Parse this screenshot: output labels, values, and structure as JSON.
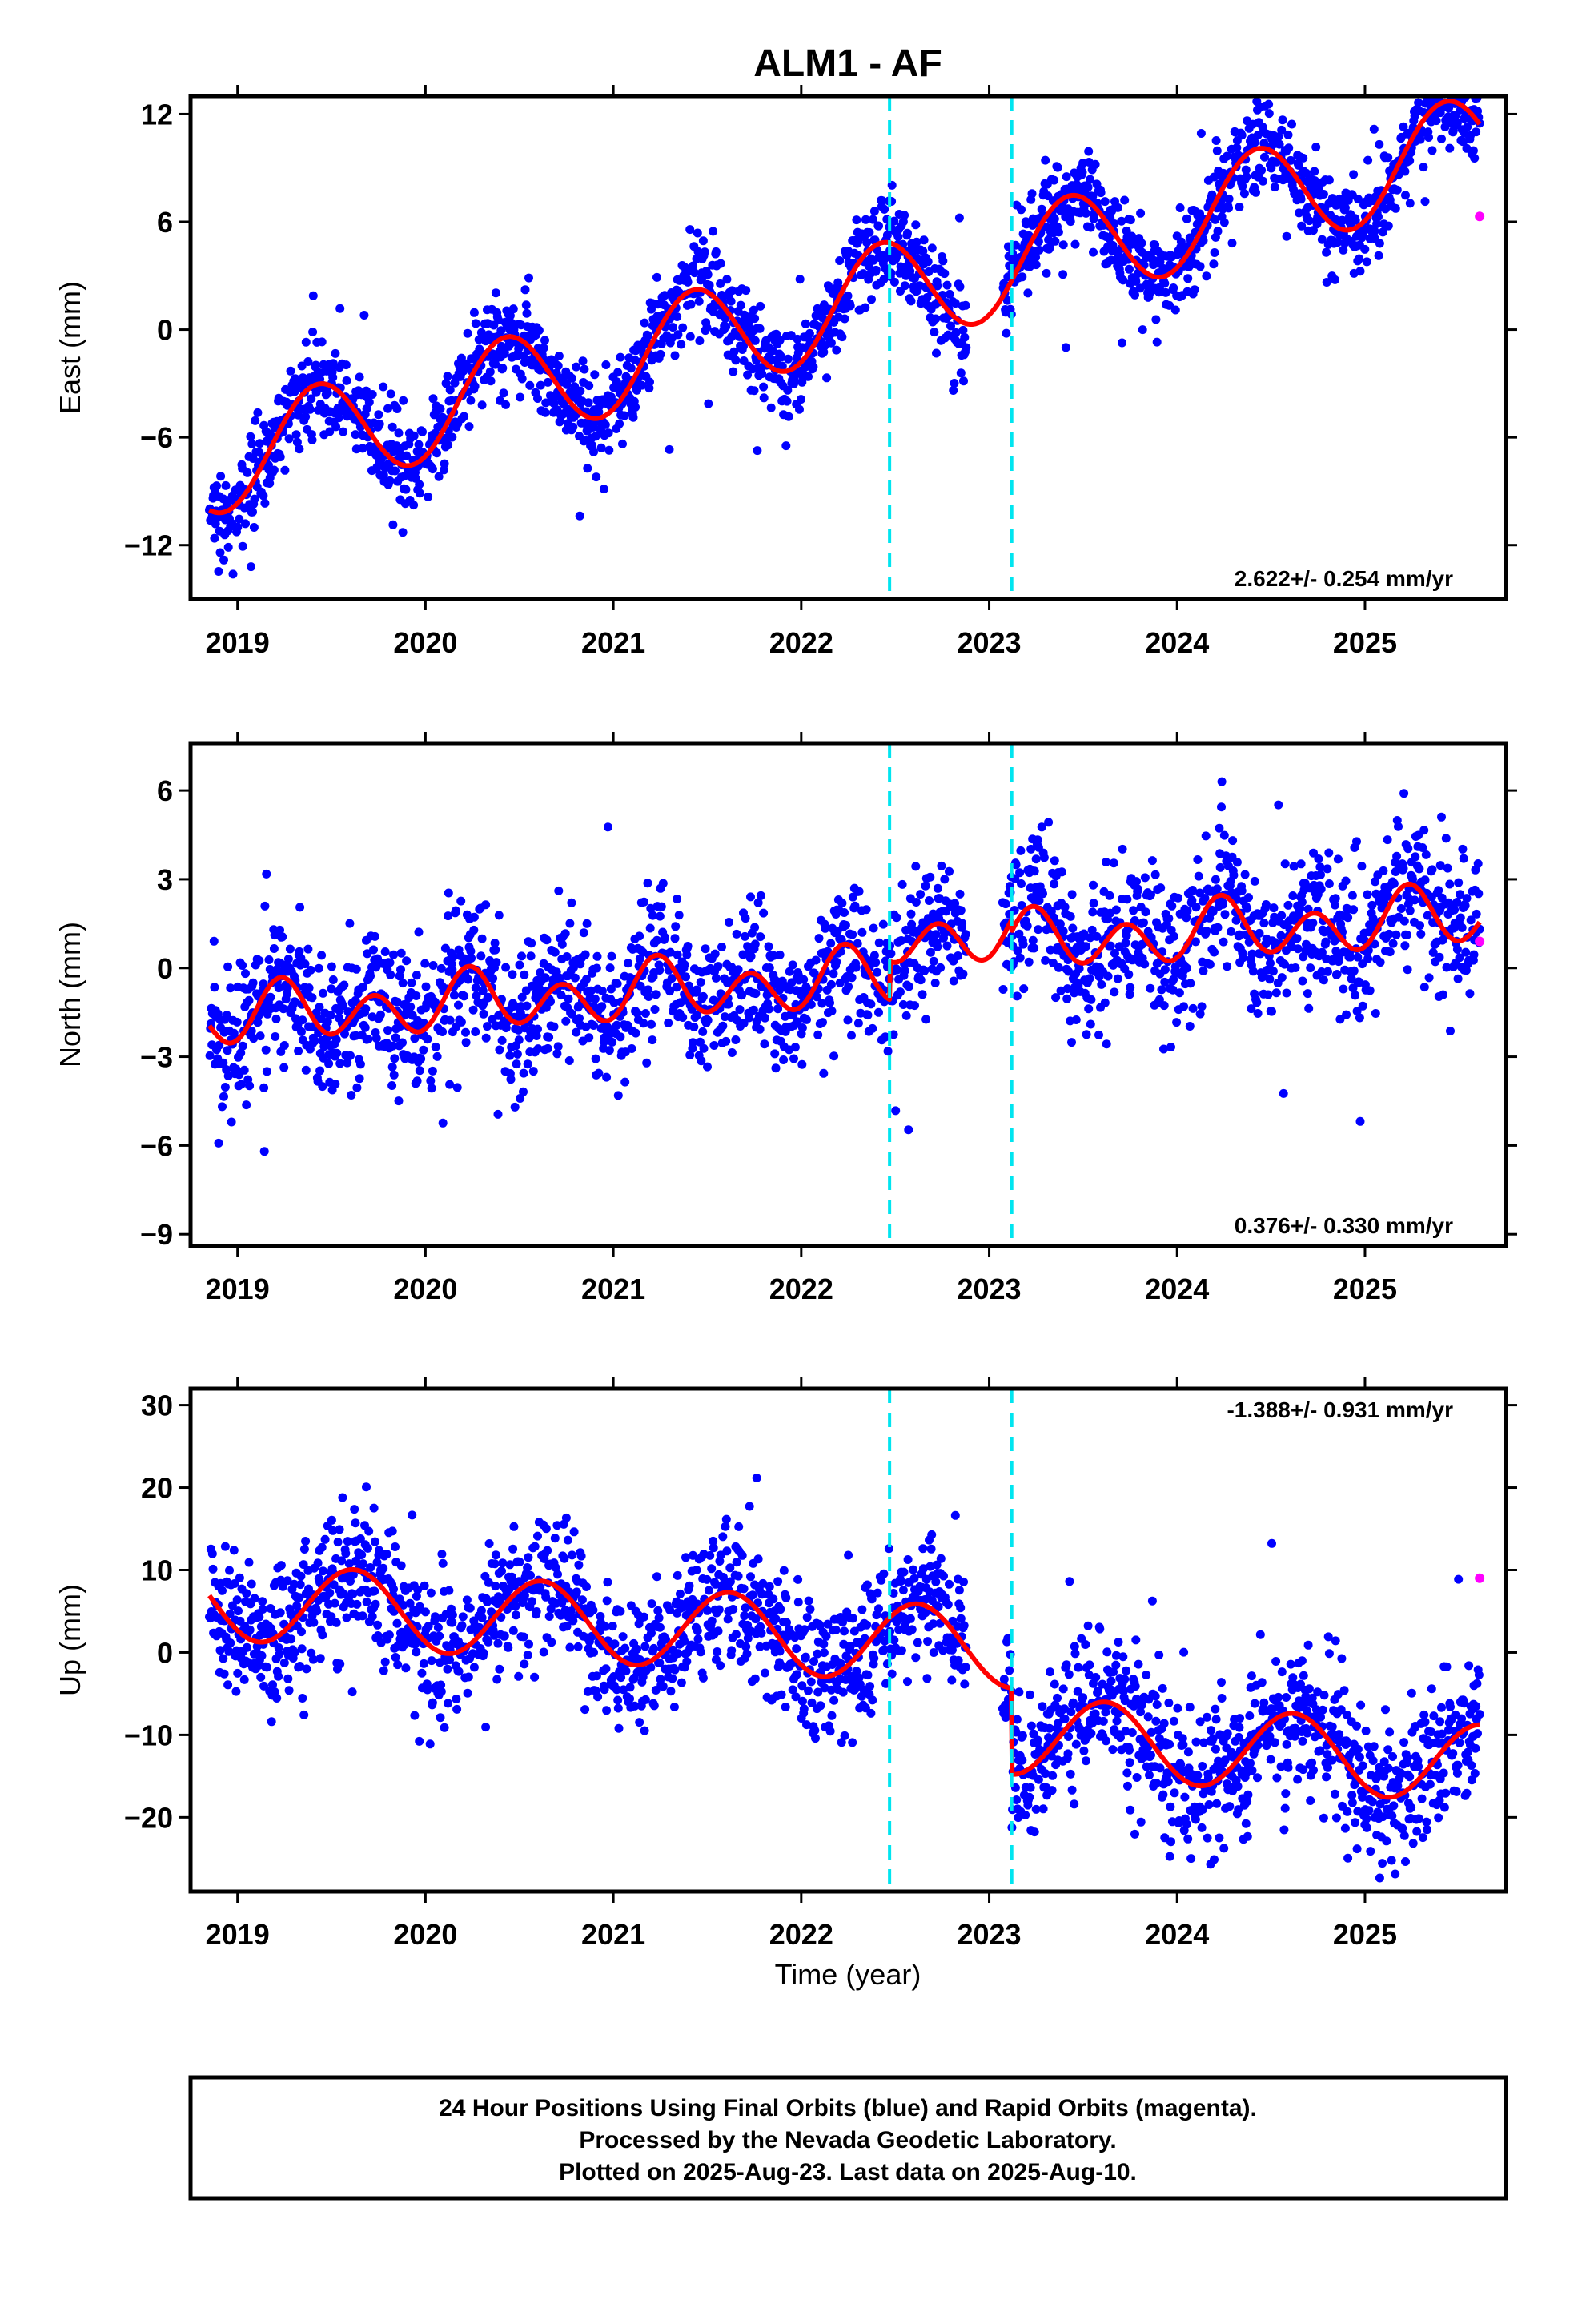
{
  "title": "ALM1 - AF",
  "xlabel": "Time (year)",
  "footer": {
    "line1": "24 Hour Positions Using Final Orbits (blue) and Rapid Orbits (magenta).",
    "line2": "Processed by the Nevada Geodetic Laboratory.",
    "line3": "Plotted on 2025-Aug-23. Last data on 2025-Aug-10."
  },
  "colors": {
    "final_orbits": "#0000ff",
    "rapid_orbits": "#ff00ff",
    "model": "#ff0000",
    "equipment_change": "#00e5f0"
  },
  "chart_data": [
    {
      "type": "scatter",
      "panel": "east",
      "ylabel": "East (mm)",
      "rate": "2.622+/- 0.254 mm/yr",
      "xlim": [
        2018.75,
        2025.75
      ],
      "ylim": [
        -15,
        13
      ],
      "yticks": [
        12,
        6,
        0,
        -6,
        -12
      ],
      "ytick_labels": [
        "12",
        "6",
        "0",
        "−6",
        "−12"
      ],
      "xticks": [
        2019,
        2020,
        2021,
        2022,
        2023,
        2024,
        2025
      ],
      "xtick_labels": [
        "2019",
        "2020",
        "2021",
        "2022",
        "2023",
        "2024",
        "2025"
      ],
      "breaks": [
        2022.47,
        2023.12
      ],
      "model": {
        "t0": 2022,
        "intercept": 0.8,
        "rate": 2.622,
        "step1": 0.0,
        "step2": 0.0,
        "annual_cos": -2.6,
        "annual_sin": 1.3,
        "semi_cos": 0.0,
        "semi_sin": 0.0,
        "start": 2018.85,
        "end": 2025.61
      },
      "scatter_noise": 1.3,
      "rapid_points": [
        {
          "x": 2025.61,
          "y": 6.3
        }
      ]
    },
    {
      "type": "scatter",
      "panel": "north",
      "ylabel": "North (mm)",
      "rate": "0.376+/- 0.330 mm/yr",
      "xlim": [
        2018.75,
        2025.75
      ],
      "ylim": [
        -9.4,
        7.6
      ],
      "yticks": [
        6,
        3,
        0,
        -3,
        -6,
        -9
      ],
      "ytick_labels": [
        "6",
        "3",
        "0",
        "−3",
        "−6",
        "−9"
      ],
      "xticks": [
        2019,
        2020,
        2021,
        2022,
        2023,
        2024,
        2025
      ],
      "xtick_labels": [
        "2019",
        "2020",
        "2021",
        "2022",
        "2023",
        "2024",
        "2025"
      ],
      "breaks": [
        2022.47,
        2023.12
      ],
      "model": {
        "t0": 2022,
        "intercept": -0.5,
        "rate": 0.376,
        "step1": 1.3,
        "step2": -0.4,
        "annual_cos": 0.0,
        "annual_sin": 0.4,
        "semi_cos": -0.8,
        "semi_sin": 0.2,
        "start": 2018.85,
        "end": 2025.61
      },
      "scatter_noise": 1.2,
      "rapid_points": [
        {
          "x": 2025.61,
          "y": 0.9
        }
      ]
    },
    {
      "type": "scatter",
      "panel": "up",
      "ylabel": "Up (mm)",
      "rate": "-1.388+/- 0.931 mm/yr",
      "xlim": [
        2018.75,
        2025.75
      ],
      "ylim": [
        -29,
        32
      ],
      "yticks": [
        30,
        20,
        10,
        0,
        -10,
        -20
      ],
      "ytick_labels": [
        "30",
        "20",
        "10",
        "0",
        "−10",
        "−20"
      ],
      "xticks": [
        2019,
        2020,
        2021,
        2022,
        2023,
        2024,
        2025
      ],
      "xtick_labels": [
        "2019",
        "2020",
        "2021",
        "2022",
        "2023",
        "2024",
        "2025"
      ],
      "breaks": [
        2022.47,
        2023.12
      ],
      "model": {
        "t0": 2022,
        "intercept": 2.0,
        "rate": -1.388,
        "step1": 0.0,
        "step2": -10.5,
        "annual_cos": -3.5,
        "annual_sin": -3.2,
        "semi_cos": 0.0,
        "semi_sin": 0.0,
        "start": 2018.85,
        "end": 2025.61
      },
      "scatter_noise": 4.2,
      "rapid_points": [
        {
          "x": 2025.61,
          "y": 9.0
        }
      ]
    }
  ]
}
